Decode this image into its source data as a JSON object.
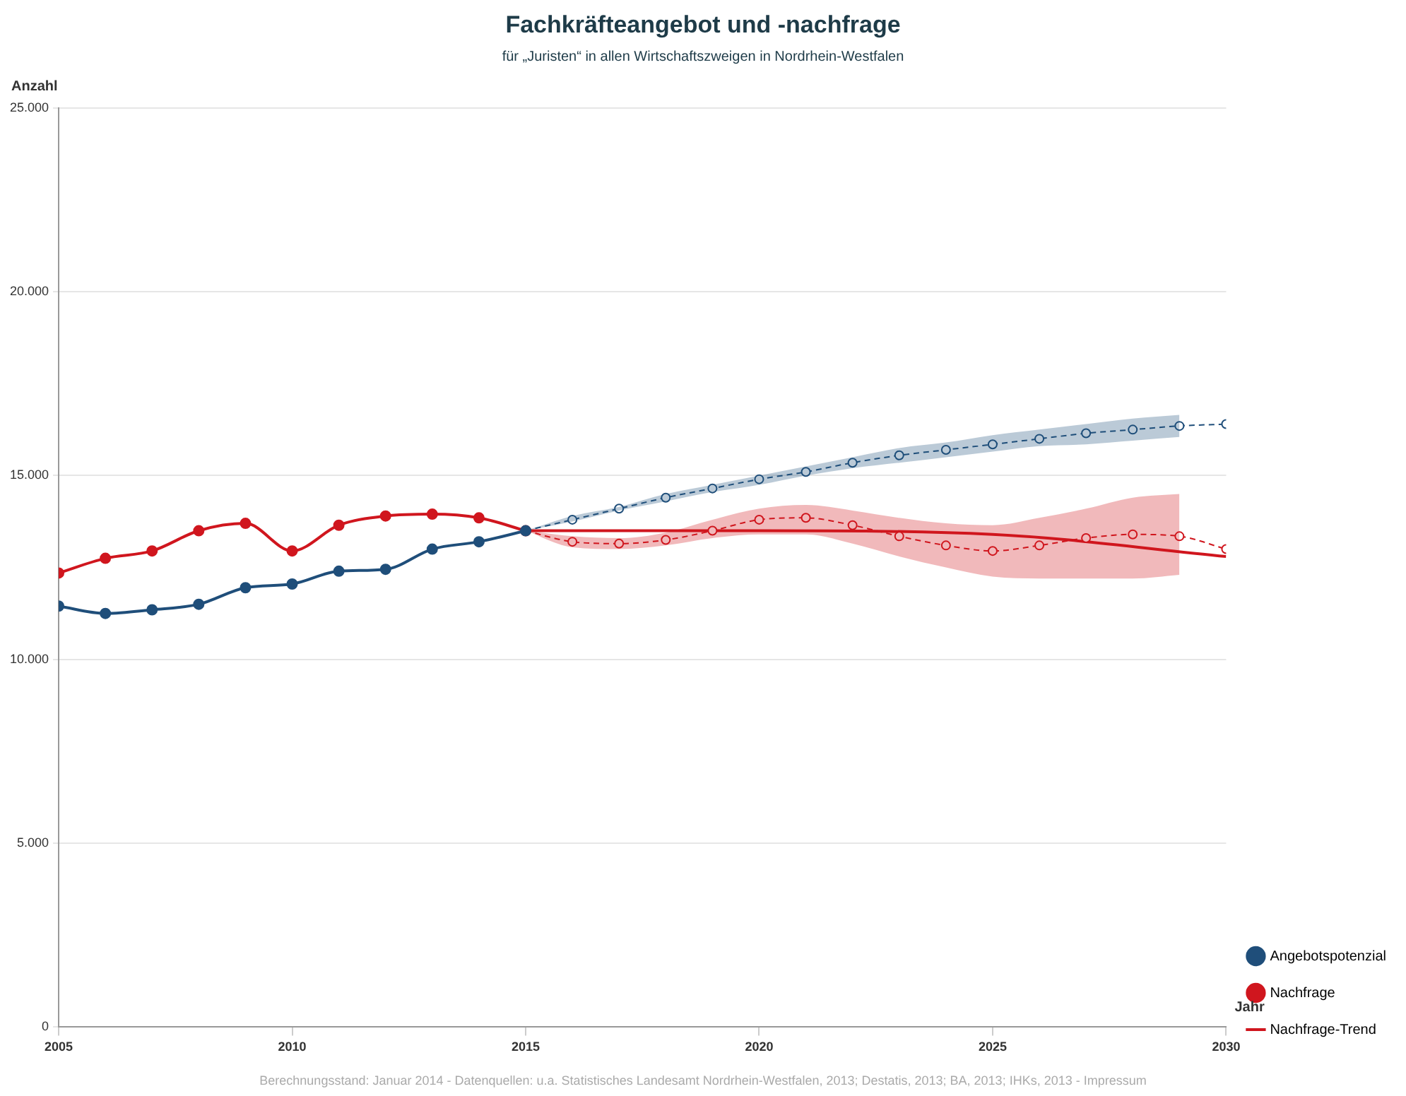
{
  "chart_data": {
    "type": "line",
    "title": "Fachkräfteangebot und -nachfrage",
    "subtitle": "für „Juristen“ in allen Wirtschaftszweigen in Nordrhein-Westfalen",
    "xlabel": "Jahr",
    "ylabel": "Anzahl",
    "xlim": [
      2005,
      2030
    ],
    "xticks": [
      2005,
      2010,
      2015,
      2020,
      2025,
      2030
    ],
    "ylim": [
      0,
      25000
    ],
    "yticks": [
      0,
      {
        "value": 5000,
        "label": "5.000"
      },
      {
        "value": 10000,
        "label": "10.000"
      },
      {
        "value": 15000,
        "label": "15.000"
      },
      {
        "value": 20000,
        "label": "20.000"
      },
      {
        "value": 25000,
        "label": "25.000"
      }
    ],
    "grid": "y",
    "legend": "bottom right",
    "series": [
      {
        "name": "Angebotspotenzial",
        "color": "#1f4e7a",
        "marker": "circle",
        "line_style": "solid",
        "x": [
          2005,
          2006,
          2007,
          2008,
          2009,
          2010,
          2011,
          2012,
          2013,
          2014,
          2015
        ],
        "values": [
          11450,
          11250,
          11350,
          11500,
          11950,
          12050,
          12400,
          12450,
          13000,
          13200,
          13500
        ]
      },
      {
        "color": "#1f4e7a",
        "marker": "circle",
        "line_style": "dashed",
        "x": [
          2015,
          2016,
          2017,
          2018,
          2019,
          2020,
          2021,
          2022,
          2023,
          2024,
          2025,
          2026,
          2027,
          2028,
          2029,
          2030
        ],
        "values": [
          13500,
          13800,
          14100,
          14400,
          14650,
          14900,
          15100,
          15350,
          15550,
          15700,
          15850,
          16000,
          16150,
          16250,
          16350,
          16400
        ],
        "lower": [
          13500,
          13750,
          14050,
          14300,
          14550,
          14750,
          15000,
          15200,
          15350,
          15500,
          15650,
          15800,
          15850,
          15950,
          16050,
          null
        ],
        "upper": [
          13500,
          13900,
          14150,
          14500,
          14750,
          15000,
          15250,
          15500,
          15750,
          15900,
          16100,
          16250,
          16400,
          16550,
          16650,
          null
        ]
      },
      {
        "name": "Nachfrage",
        "color": "#d0161e",
        "marker": "circle",
        "line_style": "solid",
        "x": [
          2005,
          2006,
          2007,
          2008,
          2009,
          2010,
          2011,
          2012,
          2013,
          2014,
          2015
        ],
        "values": [
          12350,
          12750,
          12950,
          13500,
          13700,
          12950,
          13650,
          13900,
          13950,
          13850,
          13500
        ]
      },
      {
        "color": "#d0161e",
        "marker": "circle",
        "line_style": "dashed",
        "x": [
          2015,
          2016,
          2017,
          2018,
          2019,
          2020,
          2021,
          2022,
          2023,
          2024,
          2025,
          2026,
          2027,
          2028,
          2029,
          2030
        ],
        "values": [
          13500,
          13200,
          13150,
          13250,
          13500,
          13800,
          13850,
          13650,
          13350,
          13100,
          12950,
          13100,
          13300,
          13400,
          13350,
          13000
        ],
        "lower": [
          13500,
          13050,
          13000,
          13100,
          13300,
          13400,
          13400,
          13150,
          12800,
          12500,
          12250,
          12200,
          12200,
          12200,
          12300,
          null
        ],
        "upper": [
          13500,
          13350,
          13300,
          13450,
          13800,
          14100,
          14200,
          14050,
          13850,
          13700,
          13650,
          13850,
          14100,
          14400,
          14500,
          null
        ]
      },
      {
        "name": "Nachfrage-Trend",
        "color": "#d0161e",
        "marker": "none",
        "line_style": "solid",
        "x": [
          2015,
          2020,
          2025,
          2030
        ],
        "values": [
          13500,
          13500,
          13400,
          12800
        ]
      }
    ],
    "annotations": [
      "Berechnungsstand: Januar 2014 - Datenquellen: u.a. Statistisches Landesamt Nordrhein-Westfalen, 2013; Destatis, 2013; BA, 2013; IHKs, 2013 - Impressum"
    ]
  }
}
